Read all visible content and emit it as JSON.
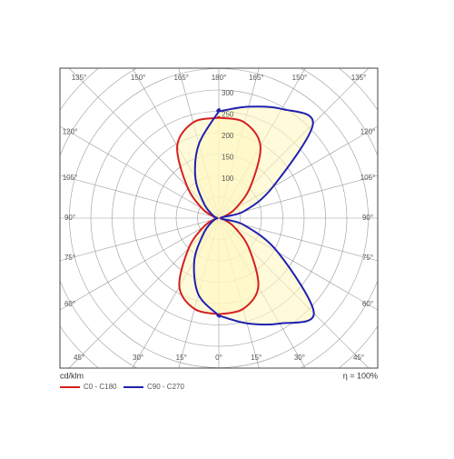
{
  "chart_data": {
    "type": "polar",
    "x": [
      0,
      15,
      30,
      45,
      60,
      75,
      90,
      105,
      120,
      135,
      150,
      165,
      180
    ],
    "series": [
      {
        "name": "C0 - C180",
        "color": "#d42020",
        "values": [
          225,
          220,
          185,
          100,
          42,
          12,
          3,
          12,
          45,
          105,
          195,
          232,
          235
        ],
        "values_left": [
          225,
          220,
          185,
          100,
          42,
          12,
          3,
          12,
          45,
          105,
          195,
          232,
          235
        ]
      },
      {
        "name": "C90 - C270",
        "color": "#2020b0",
        "values": [
          228,
          255,
          285,
          315,
          160,
          60,
          5,
          60,
          146,
          312,
          295,
          270,
          250
        ],
        "values_left": [
          228,
          185,
          115,
          50,
          20,
          8,
          3,
          8,
          20,
          50,
          110,
          180,
          250
        ]
      }
    ],
    "rlim": [
      0,
      300
    ],
    "rticks": [
      100,
      150,
      200,
      250,
      300
    ],
    "rgrid": [
      50,
      100,
      150,
      200,
      250,
      300,
      350,
      400,
      450
    ],
    "left_aticks": [
      {
        "value": 0,
        "label": "0°"
      },
      {
        "value": 15,
        "label": "15°"
      },
      {
        "value": 30,
        "label": "30°"
      },
      {
        "value": 45,
        "label": "45°"
      },
      {
        "value": 60,
        "label": "60°"
      },
      {
        "value": 75,
        "label": "75°"
      },
      {
        "value": 90,
        "label": "90°"
      },
      {
        "value": 105,
        "label": "105°"
      },
      {
        "value": 120,
        "label": "120°"
      },
      {
        "value": 135,
        "label": "135°"
      },
      {
        "value": 150,
        "label": "150°"
      },
      {
        "value": 165,
        "label": "165°"
      },
      {
        "value": 180,
        "label": "180°"
      }
    ],
    "right_aticks": [
      {
        "value": 15,
        "label": "15°"
      },
      {
        "value": 30,
        "label": "30°"
      },
      {
        "value": 45,
        "label": "45°"
      },
      {
        "value": 60,
        "label": "60°"
      },
      {
        "value": 75,
        "label": "75°"
      },
      {
        "value": 90,
        "label": "90°"
      },
      {
        "value": 105,
        "label": "105°"
      },
      {
        "value": 120,
        "label": "120°"
      },
      {
        "value": 135,
        "label": "135°"
      },
      {
        "value": 150,
        "label": "150°"
      },
      {
        "value": 165,
        "label": "165°"
      }
    ],
    "unit_label": "cd/klm",
    "efficiency_label": "η = 100%",
    "fill_color": "#fff6c0"
  }
}
